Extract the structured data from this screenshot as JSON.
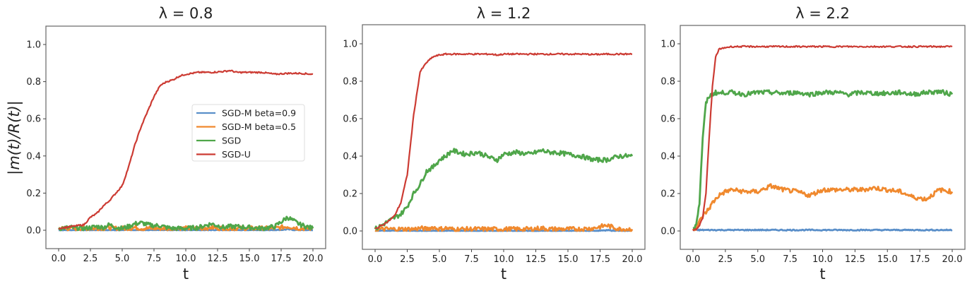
{
  "colors": {
    "SGD-M beta=0.9": "#5a8fc9",
    "SGD-M beta=0.5": "#f0892e",
    "SGD": "#4fa64a",
    "SGD-U": "#cc3b33"
  },
  "legend": [
    "SGD-M beta=0.9",
    "SGD-M beta=0.5",
    "SGD",
    "SGD-U"
  ],
  "ylabel": "|m(t)/R(t)|",
  "chart_data": [
    {
      "type": "line",
      "title": "λ = 0.8",
      "xlabel": "t",
      "ylabel": "|m(t)/R(t)|",
      "xlim": [
        -1,
        21
      ],
      "ylim": [
        -0.1,
        1.1
      ],
      "xticks": [
        "0.0",
        "2.5",
        "5.0",
        "7.5",
        "10.0",
        "12.5",
        "15.0",
        "17.5",
        "20.0"
      ],
      "yticks": [
        "0.0",
        "0.2",
        "0.4",
        "0.6",
        "0.8",
        "1.0"
      ],
      "grid": false,
      "legend_position": "center right",
      "x": [
        0,
        1,
        2,
        2.5,
        3,
        3.5,
        4,
        4.5,
        5,
        5.5,
        6,
        6.5,
        7,
        7.5,
        8,
        8.5,
        9,
        9.5,
        10,
        11,
        12,
        13,
        13.5,
        14,
        15,
        16,
        17,
        18,
        19,
        20
      ],
      "series": [
        {
          "name": "SGD-M beta=0.9",
          "values": [
            0,
            0,
            0,
            0,
            0,
            0,
            0,
            0,
            0,
            0,
            0,
            0,
            0,
            0,
            0,
            0,
            0,
            0,
            0,
            0,
            0,
            0,
            0,
            0,
            0,
            0,
            0,
            0.005,
            0,
            0
          ]
        },
        {
          "name": "SGD-M beta=0.5",
          "values": [
            0.01,
            0.01,
            0.01,
            0.01,
            0.01,
            0.01,
            0.015,
            0.01,
            0.01,
            0.01,
            0.015,
            0.01,
            0.01,
            0.01,
            0.01,
            0.01,
            0.005,
            0.01,
            0.01,
            0.01,
            0.015,
            0.01,
            0.01,
            0.01,
            0.01,
            0.01,
            0.01,
            0.02,
            0.01,
            0.01
          ]
        },
        {
          "name": "SGD",
          "values": [
            0.01,
            0.015,
            0.01,
            0.015,
            0.02,
            0.015,
            0.03,
            0.015,
            0.01,
            0.02,
            0.035,
            0.04,
            0.03,
            0.025,
            0.025,
            0.015,
            0.01,
            0.01,
            0.01,
            0.015,
            0.035,
            0.015,
            0.02,
            0.02,
            0.015,
            0.01,
            0.02,
            0.07,
            0.03,
            0.01
          ]
        },
        {
          "name": "SGD-U",
          "values": [
            0.01,
            0.02,
            0.03,
            0.07,
            0.09,
            0.13,
            0.16,
            0.2,
            0.24,
            0.34,
            0.46,
            0.56,
            0.64,
            0.72,
            0.78,
            0.8,
            0.81,
            0.83,
            0.84,
            0.85,
            0.85,
            0.855,
            0.86,
            0.85,
            0.85,
            0.85,
            0.84,
            0.845,
            0.845,
            0.84
          ]
        }
      ]
    },
    {
      "type": "line",
      "title": "λ = 1.2",
      "xlabel": "t",
      "xlim": [
        -1,
        21
      ],
      "ylim": [
        -0.1,
        1.1
      ],
      "xticks": [
        "0.0",
        "2.5",
        "5.0",
        "7.5",
        "10.0",
        "12.5",
        "15.0",
        "17.5",
        "20.0"
      ],
      "yticks": [
        "0.0",
        "0.2",
        "0.4",
        "0.6",
        "0.8",
        "1.0"
      ],
      "grid": false,
      "x": [
        0,
        0.5,
        1,
        1.5,
        2,
        2.5,
        3,
        3.5,
        4,
        4.5,
        5,
        5.5,
        6,
        7,
        8,
        9,
        9.5,
        10,
        11,
        12,
        13,
        13.5,
        14,
        15,
        16,
        17,
        18,
        19,
        20
      ],
      "series": [
        {
          "name": "SGD-M beta=0.9",
          "values": [
            0,
            0,
            0,
            0,
            0,
            0,
            0,
            0,
            0,
            0,
            0,
            0,
            0,
            0,
            0,
            0,
            0,
            0,
            0,
            0,
            0,
            0,
            0,
            0,
            0,
            0,
            0.005,
            0,
            0
          ]
        },
        {
          "name": "SGD-M beta=0.5",
          "values": [
            0.005,
            0.01,
            0.01,
            0.01,
            0.01,
            0.01,
            0.01,
            0.015,
            0.01,
            0.02,
            0.01,
            0.015,
            0.01,
            0.01,
            0.01,
            0.01,
            0.01,
            0.01,
            0.01,
            0.01,
            0.015,
            0.01,
            0.01,
            0.01,
            0.01,
            0.015,
            0.03,
            0.01,
            0.01
          ]
        },
        {
          "name": "SGD",
          "values": [
            0.01,
            0.03,
            0.05,
            0.07,
            0.09,
            0.13,
            0.2,
            0.25,
            0.32,
            0.34,
            0.38,
            0.4,
            0.43,
            0.41,
            0.42,
            0.39,
            0.38,
            0.41,
            0.42,
            0.41,
            0.43,
            0.42,
            0.42,
            0.41,
            0.4,
            0.38,
            0.38,
            0.4,
            0.4
          ]
        },
        {
          "name": "SGD-U",
          "values": [
            0.01,
            0.03,
            0.05,
            0.08,
            0.15,
            0.3,
            0.62,
            0.85,
            0.9,
            0.93,
            0.94,
            0.945,
            0.945,
            0.945,
            0.945,
            0.945,
            0.94,
            0.945,
            0.945,
            0.945,
            0.945,
            0.945,
            0.945,
            0.945,
            0.945,
            0.943,
            0.945,
            0.945,
            0.945
          ]
        }
      ]
    },
    {
      "type": "line",
      "title": "λ = 2.2",
      "xlabel": "t",
      "xlim": [
        -1,
        21
      ],
      "ylim": [
        -0.1,
        1.1
      ],
      "xticks": [
        "0.0",
        "2.5",
        "5.0",
        "7.5",
        "10.0",
        "12.5",
        "15.0",
        "17.5",
        "20.0"
      ],
      "yticks": [
        "0.0",
        "0.2",
        "0.4",
        "0.6",
        "0.8",
        "1.0"
      ],
      "grid": false,
      "x": [
        0,
        0.25,
        0.5,
        0.75,
        1,
        1.25,
        1.5,
        1.75,
        2,
        2.5,
        3,
        4,
        5,
        6,
        7,
        8,
        9,
        10,
        11,
        12,
        13,
        14,
        15,
        16,
        17,
        18,
        19,
        20
      ],
      "series": [
        {
          "name": "SGD-M beta=0.9",
          "values": [
            0.005,
            0.005,
            0.005,
            0.005,
            0.005,
            0.005,
            0.005,
            0.005,
            0.005,
            0.005,
            0.005,
            0.005,
            0.005,
            0.005,
            0.005,
            0.005,
            0.005,
            0.005,
            0.005,
            0.005,
            0.005,
            0.005,
            0.005,
            0.005,
            0.005,
            0.005,
            0.005,
            0.005
          ]
        },
        {
          "name": "SGD-M beta=0.5",
          "values": [
            0.005,
            0.02,
            0.05,
            0.08,
            0.1,
            0.12,
            0.15,
            0.17,
            0.19,
            0.21,
            0.22,
            0.21,
            0.21,
            0.24,
            0.22,
            0.21,
            0.19,
            0.22,
            0.22,
            0.22,
            0.22,
            0.23,
            0.22,
            0.21,
            0.18,
            0.17,
            0.22,
            0.21
          ]
        },
        {
          "name": "SGD",
          "values": [
            0.005,
            0.04,
            0.15,
            0.5,
            0.68,
            0.72,
            0.73,
            0.74,
            0.735,
            0.74,
            0.74,
            0.73,
            0.74,
            0.74,
            0.735,
            0.74,
            0.73,
            0.74,
            0.74,
            0.73,
            0.74,
            0.735,
            0.735,
            0.74,
            0.73,
            0.74,
            0.745,
            0.73
          ]
        },
        {
          "name": "SGD-U",
          "values": [
            0.005,
            0.01,
            0.03,
            0.07,
            0.2,
            0.5,
            0.77,
            0.93,
            0.97,
            0.98,
            0.985,
            0.985,
            0.985,
            0.985,
            0.985,
            0.985,
            0.985,
            0.985,
            0.985,
            0.985,
            0.985,
            0.985,
            0.985,
            0.985,
            0.985,
            0.985,
            0.985,
            0.985
          ]
        }
      ]
    }
  ]
}
